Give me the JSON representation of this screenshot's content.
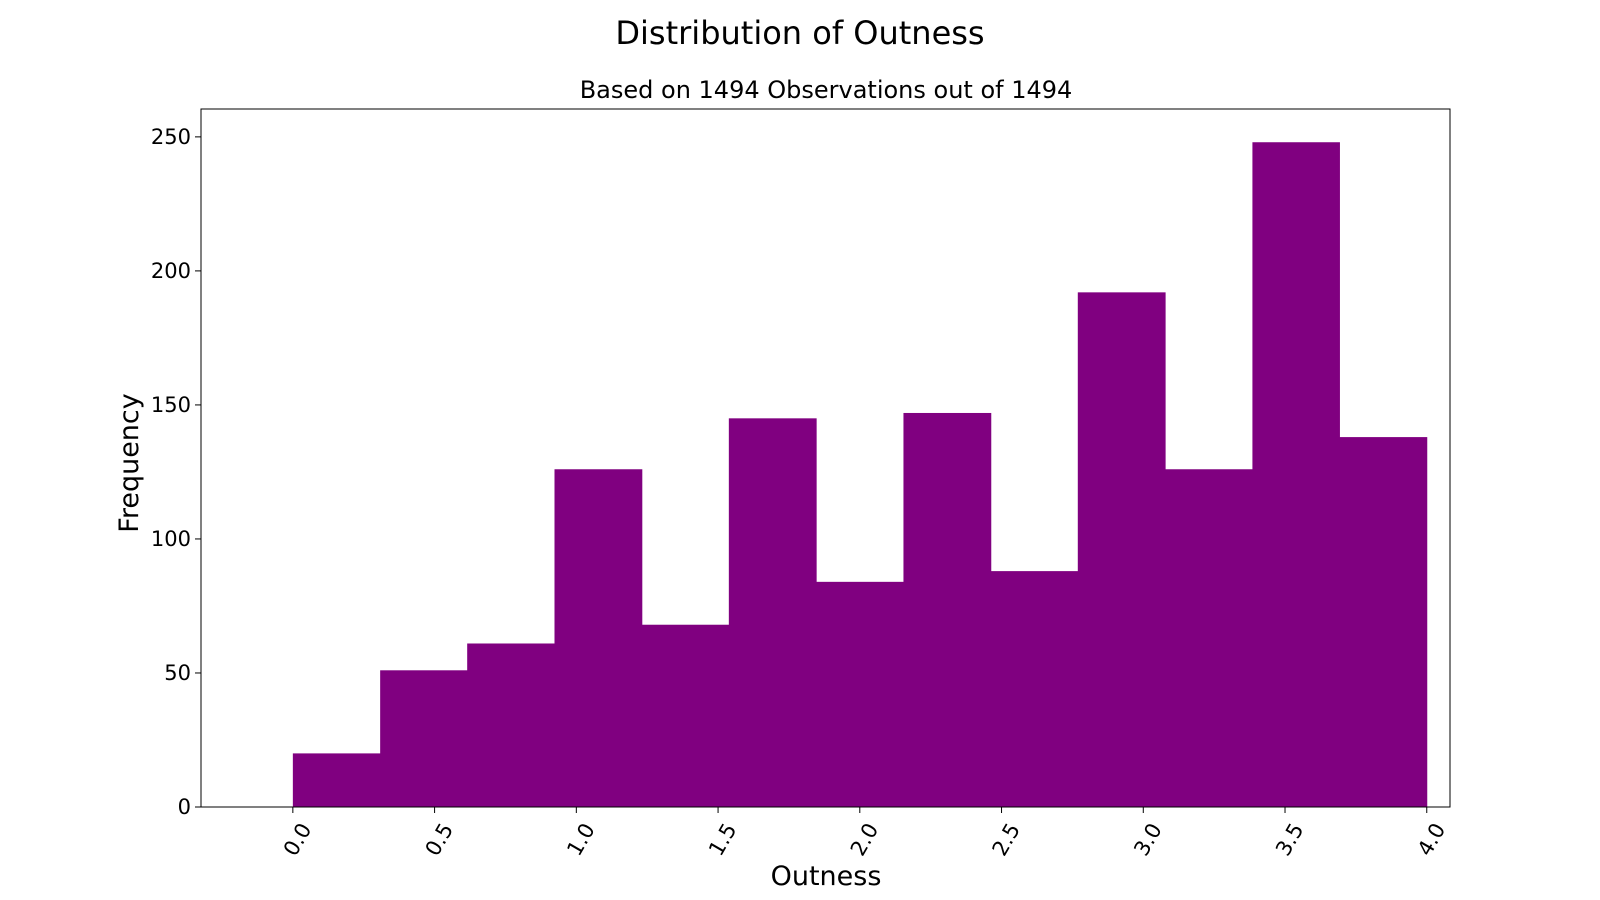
{
  "chart_data": {
    "type": "bar",
    "title": "Distribution of Outness",
    "subtitle": "Based on 1494 Observations out of 1494",
    "xlabel": "Outness",
    "ylabel": "Frequency",
    "bar_color": "#800080",
    "xlim": [
      -0.324,
      4.082
    ],
    "ylim": [
      0,
      260.4
    ],
    "x_ticks": [
      "0.0",
      "0.5",
      "1.0",
      "1.5",
      "2.0",
      "2.5",
      "3.0",
      "3.5",
      "4.0"
    ],
    "y_ticks": [
      "0",
      "50",
      "100",
      "150",
      "200",
      "250"
    ],
    "bins": [
      {
        "x0": 0.0,
        "x1": 0.308,
        "value": 20
      },
      {
        "x0": 0.308,
        "x1": 0.615,
        "value": 51
      },
      {
        "x0": 0.615,
        "x1": 0.923,
        "value": 61
      },
      {
        "x0": 0.923,
        "x1": 1.231,
        "value": 126
      },
      {
        "x0": 1.231,
        "x1": 1.538,
        "value": 68
      },
      {
        "x0": 1.538,
        "x1": 1.846,
        "value": 145
      },
      {
        "x0": 1.846,
        "x1": 2.154,
        "value": 84
      },
      {
        "x0": 2.154,
        "x1": 2.462,
        "value": 147
      },
      {
        "x0": 2.462,
        "x1": 2.769,
        "value": 88
      },
      {
        "x0": 2.769,
        "x1": 3.077,
        "value": 192
      },
      {
        "x0": 3.077,
        "x1": 3.385,
        "value": 126
      },
      {
        "x0": 3.385,
        "x1": 3.692,
        "value": 248
      },
      {
        "x0": 3.692,
        "x1": 4.0,
        "value": 138
      }
    ],
    "grid": false,
    "legend": "none"
  }
}
